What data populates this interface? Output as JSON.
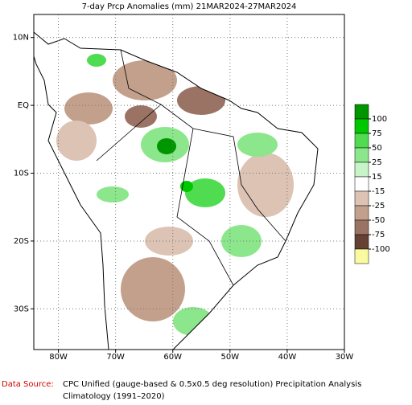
{
  "header": {
    "title": "7-day Prcp Anomalies (mm) 21MAR2024-27MAR2024"
  },
  "map": {
    "xlim": [
      -84.3,
      -30
    ],
    "ylim": [
      13.4,
      -36
    ],
    "lon_ticks": [
      {
        "value": -80,
        "label": "80W"
      },
      {
        "value": -70,
        "label": "70W"
      },
      {
        "value": -60,
        "label": "60W"
      },
      {
        "value": -50,
        "label": "50W"
      },
      {
        "value": -40,
        "label": "40W"
      },
      {
        "value": -30,
        "label": "30W"
      }
    ],
    "lat_ticks": [
      {
        "value": 10,
        "label": "10N"
      },
      {
        "value": 0,
        "label": "EQ"
      },
      {
        "value": -10,
        "label": "10S"
      },
      {
        "value": -20,
        "label": "20S"
      },
      {
        "value": -30,
        "label": "30S"
      }
    ]
  },
  "colorbar": {
    "levels": [
      100,
      75,
      50,
      25,
      15,
      -15,
      -25,
      -50,
      -75,
      -100
    ],
    "colors": [
      "#009600",
      "#00c800",
      "#50dc50",
      "#8ce68c",
      "#c8f5c8",
      "#ffffff",
      "#dcc3b4",
      "#c3a08c",
      "#9b7364",
      "#644132",
      "#fafaa0"
    ]
  },
  "footer": {
    "source_label": "Data Source:",
    "source_text": "CPC Unified (gauge-based & 0.5x0.5 deg resolution) Precipitation Analysis",
    "climatology": "Climatology (1991–2020)"
  }
}
